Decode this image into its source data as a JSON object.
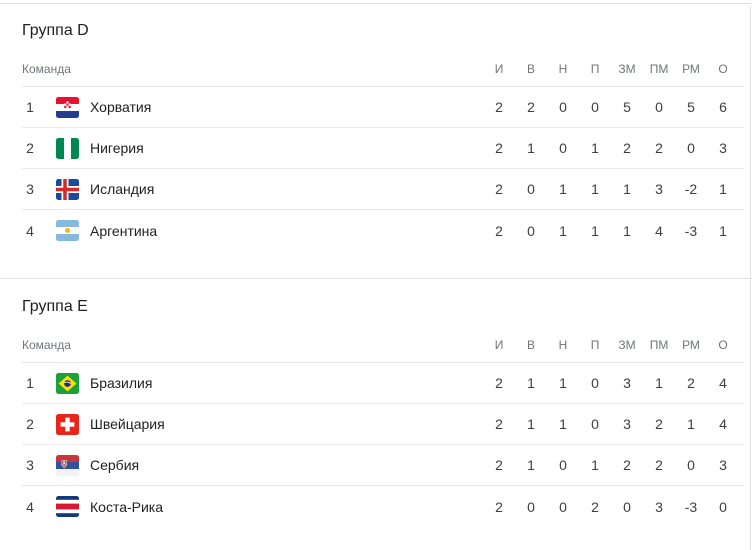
{
  "columns": {
    "team": "Команда",
    "stats": [
      {
        "key": "games",
        "label": "И"
      },
      {
        "key": "wins",
        "label": "В"
      },
      {
        "key": "draws",
        "label": "Н"
      },
      {
        "key": "losses",
        "label": "П"
      },
      {
        "key": "goals-for",
        "label": "ЗМ"
      },
      {
        "key": "goals-against",
        "label": "ПМ"
      },
      {
        "key": "goal-diff",
        "label": "РМ"
      },
      {
        "key": "points",
        "label": "О"
      }
    ]
  },
  "groups": [
    {
      "title": "Группа D",
      "teams": [
        {
          "rank": "1",
          "name": "Хорватия",
          "flag": "croatia",
          "stats": [
            "2",
            "2",
            "0",
            "0",
            "5",
            "0",
            "5",
            "6"
          ]
        },
        {
          "rank": "2",
          "name": "Нигерия",
          "flag": "nigeria",
          "stats": [
            "2",
            "1",
            "0",
            "1",
            "2",
            "2",
            "0",
            "3"
          ]
        },
        {
          "rank": "3",
          "name": "Исландия",
          "flag": "iceland",
          "stats": [
            "2",
            "0",
            "1",
            "1",
            "1",
            "3",
            "-2",
            "1"
          ]
        },
        {
          "rank": "4",
          "name": "Аргентина",
          "flag": "argentina",
          "stats": [
            "2",
            "0",
            "1",
            "1",
            "1",
            "4",
            "-3",
            "1"
          ]
        }
      ]
    },
    {
      "title": "Группа E",
      "teams": [
        {
          "rank": "1",
          "name": "Бразилия",
          "flag": "brazil",
          "stats": [
            "2",
            "1",
            "1",
            "0",
            "3",
            "1",
            "2",
            "4"
          ]
        },
        {
          "rank": "2",
          "name": "Швейцария",
          "flag": "switzerland",
          "stats": [
            "2",
            "1",
            "1",
            "0",
            "3",
            "2",
            "1",
            "4"
          ]
        },
        {
          "rank": "3",
          "name": "Сербия",
          "flag": "serbia",
          "stats": [
            "2",
            "1",
            "0",
            "1",
            "2",
            "2",
            "0",
            "3"
          ]
        },
        {
          "rank": "4",
          "name": "Коста-Рика",
          "flag": "costa-rica",
          "stats": [
            "2",
            "0",
            "0",
            "2",
            "0",
            "3",
            "-3",
            "0"
          ]
        }
      ]
    }
  ],
  "colors": {
    "divider": "#e0e0e0",
    "row_divider": "#e8eaed",
    "title_text": "#202124",
    "header_text": "#70757a",
    "cell_text": "#3c4043"
  }
}
